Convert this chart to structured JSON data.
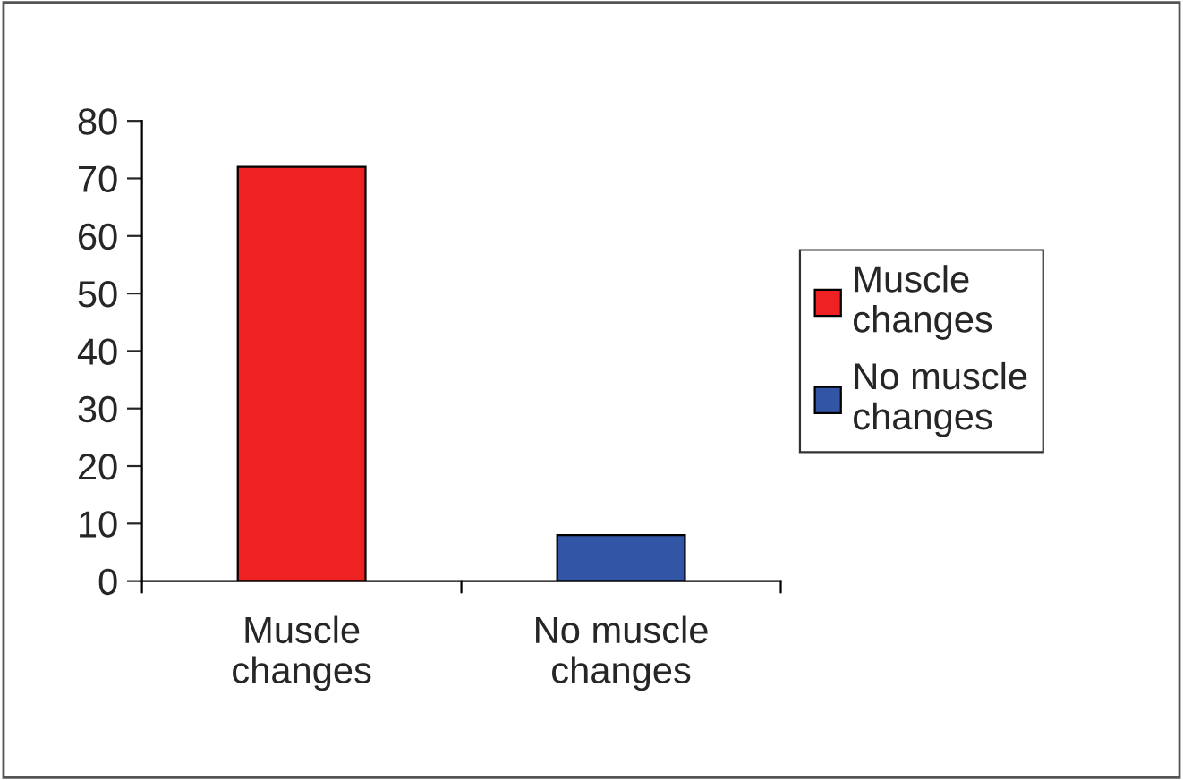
{
  "chart_data": {
    "type": "bar",
    "categories": [
      "Muscle\nchanges",
      "No muscle\nchanges"
    ],
    "series": [
      {
        "name": "Muscle\nchanges",
        "color": "#ee2222",
        "values": [
          72,
          null
        ]
      },
      {
        "name": "No muscle\nchanges",
        "color": "#3355a5",
        "values": [
          null,
          8
        ]
      }
    ],
    "ylim": [
      0,
      80
    ],
    "yticks": [
      0,
      10,
      20,
      30,
      40,
      50,
      60,
      70,
      80
    ],
    "grid": false,
    "legend": "right"
  }
}
